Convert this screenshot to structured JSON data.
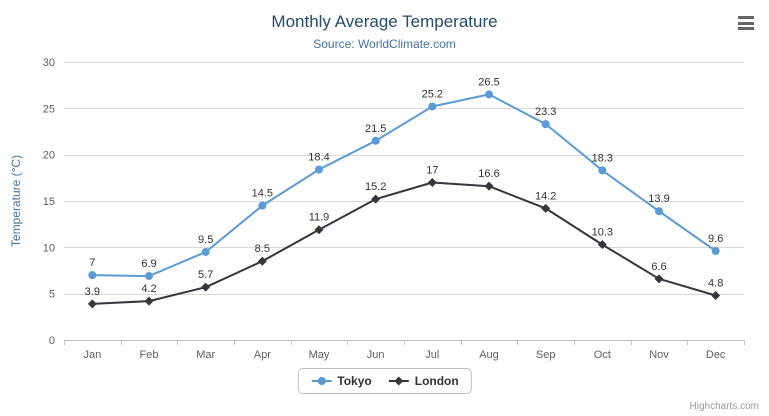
{
  "chart_data": {
    "type": "line",
    "title": "Monthly Average Temperature",
    "subtitle": "Source: WorldClimate.com",
    "xlabel": "",
    "ylabel": "Temperature (°C)",
    "ylim": [
      0,
      30
    ],
    "ytick_interval": 5,
    "grid": true,
    "legend_position": "bottom",
    "categories": [
      "Jan",
      "Feb",
      "Mar",
      "Apr",
      "May",
      "Jun",
      "Jul",
      "Aug",
      "Sep",
      "Oct",
      "Nov",
      "Dec"
    ],
    "series": [
      {
        "name": "Tokyo",
        "color": "#5b9bd5",
        "marker": "circle",
        "values": [
          7.0,
          6.9,
          9.5,
          14.5,
          18.4,
          21.5,
          25.2,
          26.5,
          23.3,
          18.3,
          13.9,
          9.6
        ]
      },
      {
        "name": "London",
        "color": "#36363c",
        "marker": "diamond",
        "values": [
          3.9,
          4.2,
          5.7,
          8.5,
          11.9,
          15.2,
          17.0,
          16.6,
          14.2,
          10.3,
          6.6,
          4.8
        ]
      }
    ]
  },
  "credits": "Highcharts.com",
  "export_menu": {
    "icon": "hamburger-icon"
  },
  "colors": {
    "title": "#274b6d",
    "subtitle": "#4572a7",
    "axis_title": "#4d759e",
    "axis_labels": "#606060",
    "grid": "#d9d9d9",
    "axis_line": "#c0c0c0",
    "data_label": "#333333",
    "legend_border": "#bfbfbf",
    "credits": "#999999"
  }
}
